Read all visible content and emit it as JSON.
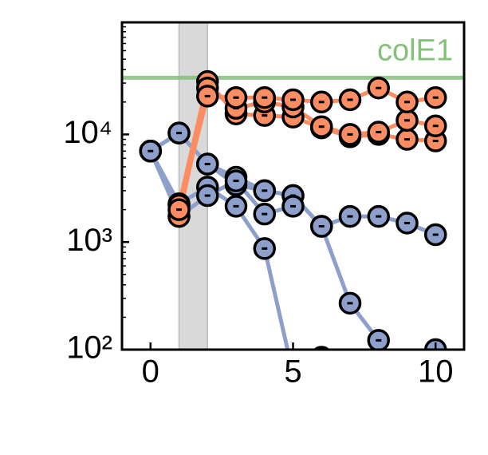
{
  "chart_data": {
    "type": "line",
    "x": [
      0,
      1,
      2,
      3,
      4,
      5,
      6,
      7,
      8,
      9,
      10
    ],
    "xlim": [
      -1,
      11
    ],
    "xticks": [
      0,
      5,
      10
    ],
    "ylim": [
      100,
      110000
    ],
    "log_y": true,
    "yticks": [
      {
        "value": 100,
        "label": "10²"
      },
      {
        "value": 1000,
        "label": "10³"
      },
      {
        "value": 10000,
        "label": "10⁴"
      }
    ],
    "yminorticks": [
      200,
      300,
      400,
      500,
      600,
      700,
      800,
      900,
      2000,
      3000,
      4000,
      5000,
      6000,
      7000,
      8000,
      9000,
      20000,
      30000,
      40000,
      50000,
      60000,
      70000,
      80000,
      90000,
      100000
    ],
    "shade": {
      "x": [
        1,
        2
      ],
      "color": "#d9d9d9"
    },
    "reference_line": {
      "value": 33600,
      "label": "colE1",
      "color": "#86c17a"
    },
    "series": [
      {
        "color": "#8da0cb",
        "values": [
          7000,
          10300,
          5300,
          3400,
          3000,
          2700,
          1400,
          270,
          122,
          null,
          100
        ]
      },
      {
        "color": "#8da0cb",
        "values": [
          7000,
          10300,
          5300,
          4000,
          3000,
          2700,
          1400,
          1730,
          1730,
          1500,
          1170
        ]
      },
      {
        "color": "#8da0cb",
        "values": [
          7000,
          2270,
          3240,
          2150,
          870,
          60,
          85,
          null,
          null,
          null,
          null
        ]
      },
      {
        "color": "#8da0cb",
        "values": [
          7000,
          1730,
          2700,
          3700,
          1820,
          2150,
          null,
          null,
          null,
          null,
          null
        ]
      },
      {
        "color": "#fc8d62",
        "values": [
          null,
          2200,
          31000,
          15500,
          15000,
          14500,
          11500,
          9500,
          10000,
          9000,
          8700
        ]
      },
      {
        "color": "#fc8d62",
        "values": [
          null,
          1730,
          27000,
          17500,
          20000,
          18000,
          11800,
          10000,
          10500,
          13500,
          12000
        ]
      },
      {
        "color": "#fc8d62",
        "values": [
          null,
          2000,
          22700,
          22000,
          22000,
          21000,
          20000,
          21000,
          27000,
          20000,
          22000
        ]
      }
    ]
  }
}
